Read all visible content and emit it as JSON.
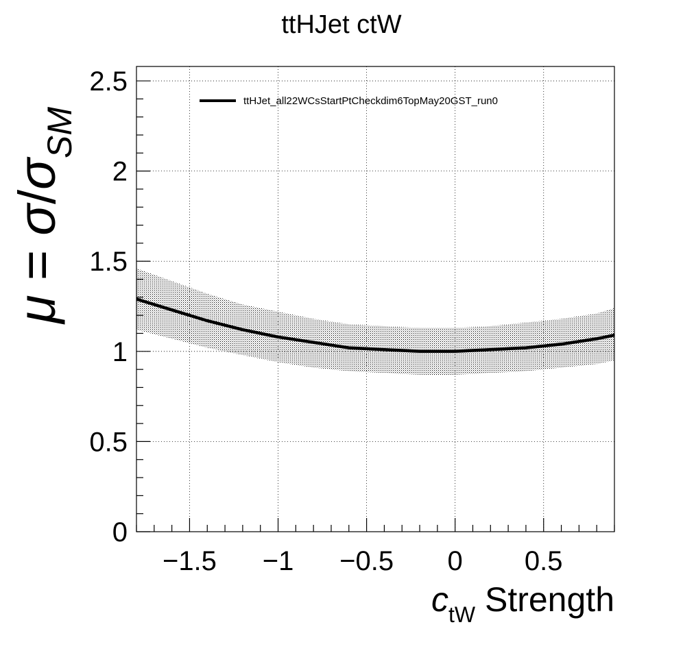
{
  "chart_data": {
    "type": "line",
    "title": "ttHJet ctW",
    "xlabel": {
      "symbol": "c",
      "subscript": "tW",
      "suffix": " Strength"
    },
    "ylabel": {
      "mu": "μ",
      "eq": " = ",
      "sigma": "σ",
      "slash": "/",
      "sigma2": "σ",
      "subscript": "SM"
    },
    "xlim": [
      -1.8,
      0.9
    ],
    "ylim": [
      0,
      2.58
    ],
    "xticks": [
      -1.5,
      -1,
      -0.5,
      0,
      0.5
    ],
    "xtick_labels": [
      "−1.5",
      "−1",
      "−0.5",
      "0",
      "0.5"
    ],
    "yticks": [
      0,
      0.5,
      1,
      1.5,
      2,
      2.5
    ],
    "ytick_labels": [
      "0",
      "0.5",
      "1",
      "1.5",
      "2",
      "2.5"
    ],
    "grid": true,
    "legend": {
      "position": "top-left",
      "entries": [
        "ttHJet_all22WCsStartPtCheckdim6TopMay20GST_run0"
      ]
    },
    "series": [
      {
        "name": "ttHJet_all22WCsStartPtCheckdim6TopMay20GST_run0",
        "x": [
          -1.8,
          -1.6,
          -1.4,
          -1.2,
          -1.0,
          -0.8,
          -0.6,
          -0.4,
          -0.2,
          0.0,
          0.2,
          0.4,
          0.6,
          0.8,
          0.9
        ],
        "y": [
          1.29,
          1.23,
          1.17,
          1.12,
          1.08,
          1.05,
          1.02,
          1.01,
          1.0,
          1.0,
          1.01,
          1.02,
          1.04,
          1.07,
          1.09
        ],
        "band_low": [
          1.12,
          1.07,
          1.02,
          0.98,
          0.94,
          0.91,
          0.89,
          0.88,
          0.87,
          0.87,
          0.88,
          0.89,
          0.91,
          0.93,
          0.95
        ],
        "band_high": [
          1.46,
          1.39,
          1.32,
          1.26,
          1.22,
          1.18,
          1.15,
          1.14,
          1.13,
          1.13,
          1.14,
          1.16,
          1.18,
          1.21,
          1.24
        ]
      }
    ]
  }
}
